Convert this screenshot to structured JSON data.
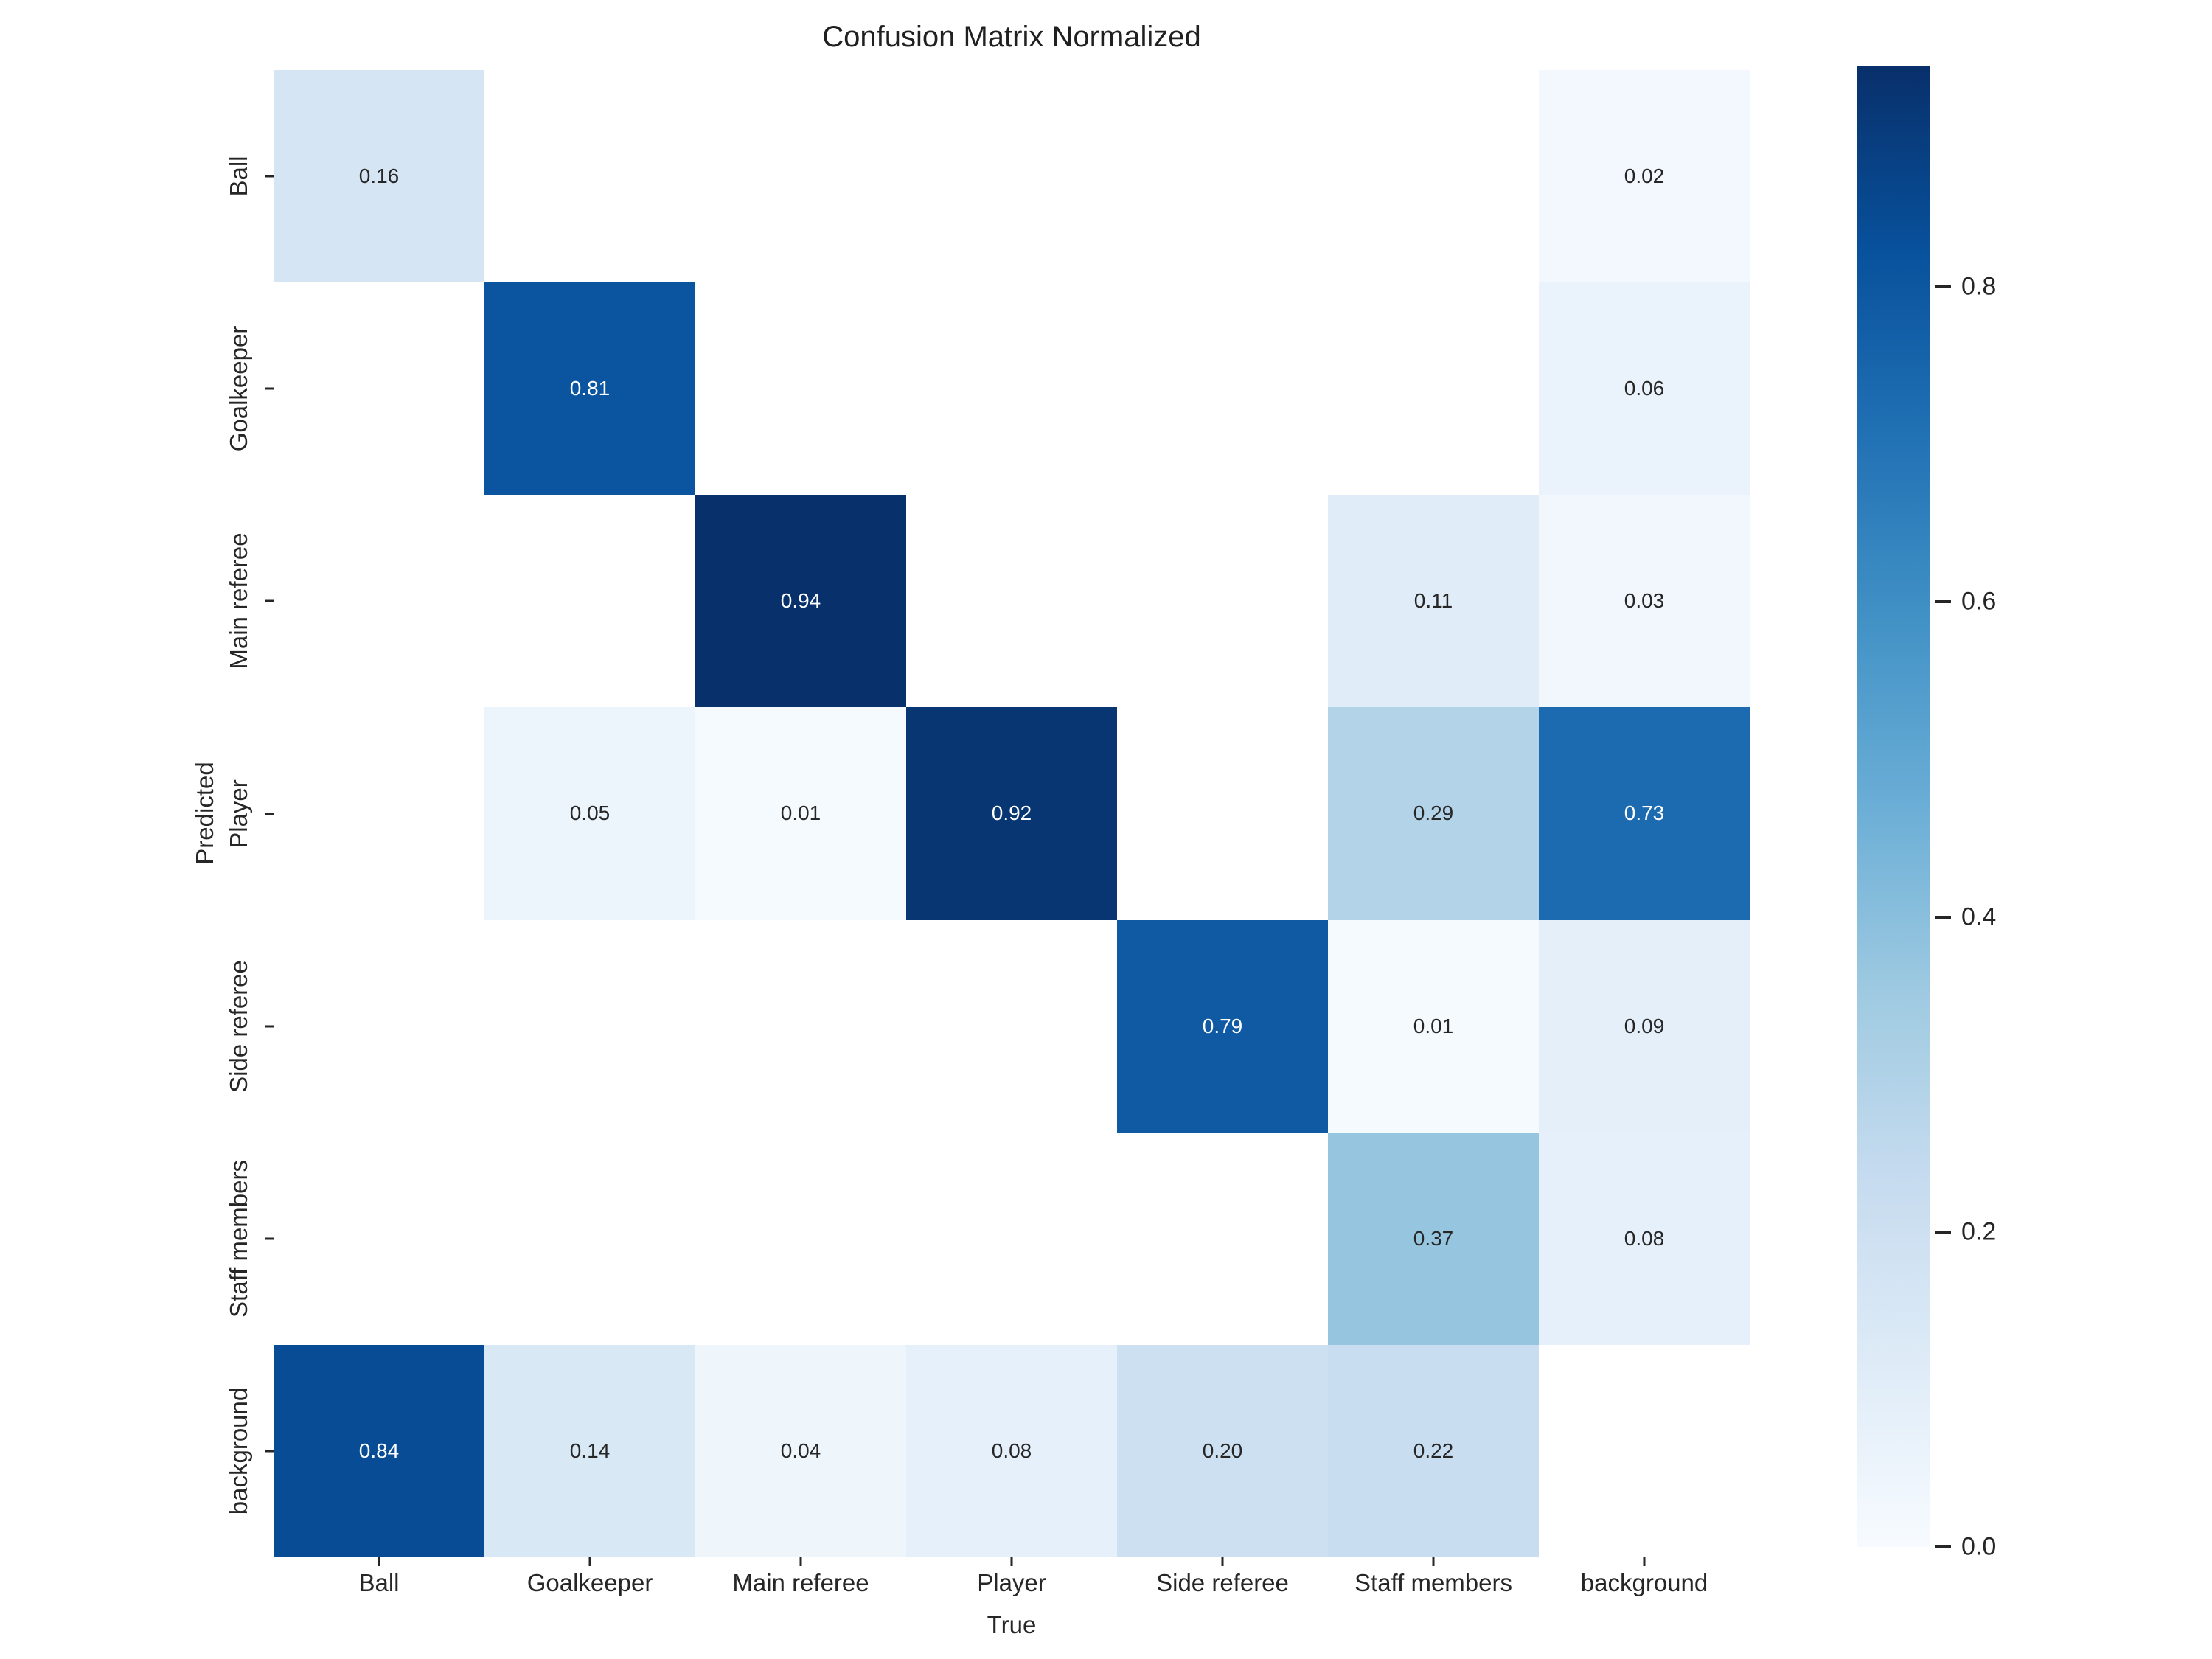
{
  "title": "Confusion Matrix Normalized",
  "chart_data": {
    "type": "heatmap",
    "title": "Confusion Matrix Normalized",
    "xlabel": "True",
    "ylabel": "Predicted",
    "x_categories": [
      "Ball",
      "Goalkeeper",
      "Main referee",
      "Player",
      "Side referee",
      "Staff members",
      "background"
    ],
    "y_categories": [
      "Ball",
      "Goalkeeper",
      "Main referee",
      "Player",
      "Side referee",
      "Staff members",
      "background"
    ],
    "matrix": [
      [
        0.16,
        null,
        null,
        null,
        null,
        null,
        0.02
      ],
      [
        null,
        0.81,
        null,
        null,
        null,
        null,
        0.06
      ],
      [
        null,
        null,
        0.94,
        null,
        null,
        0.11,
        0.03
      ],
      [
        null,
        0.05,
        0.01,
        0.92,
        null,
        0.29,
        0.73
      ],
      [
        null,
        null,
        null,
        null,
        0.79,
        0.01,
        0.09
      ],
      [
        null,
        null,
        null,
        null,
        null,
        0.37,
        0.08
      ],
      [
        0.84,
        0.14,
        0.04,
        0.08,
        0.2,
        0.22,
        null
      ]
    ],
    "value_decimals": 2,
    "vmin": 0.0,
    "vmax": 0.94,
    "colormap": "Blues",
    "colormap_stops": [
      [
        247,
        251,
        255
      ],
      [
        222,
        235,
        247
      ],
      [
        198,
        219,
        239
      ],
      [
        158,
        202,
        225
      ],
      [
        107,
        174,
        214
      ],
      [
        66,
        146,
        198
      ],
      [
        33,
        113,
        181
      ],
      [
        8,
        81,
        156
      ],
      [
        8,
        48,
        107
      ]
    ],
    "empty_cell_color": "#ffffff",
    "colorbar_ticks": [
      "0.0",
      "0.2",
      "0.4",
      "0.6",
      "0.8"
    ],
    "colorbar_tick_values": [
      0.0,
      0.2,
      0.4,
      0.6,
      0.8
    ],
    "legend_position": "right-colorbar",
    "grid": false
  },
  "colors": {
    "annotation_dark": "#262626",
    "annotation_light": "#ffffff",
    "tick_color": "#262626",
    "title_color": "#202020",
    "background": "#ffffff"
  }
}
